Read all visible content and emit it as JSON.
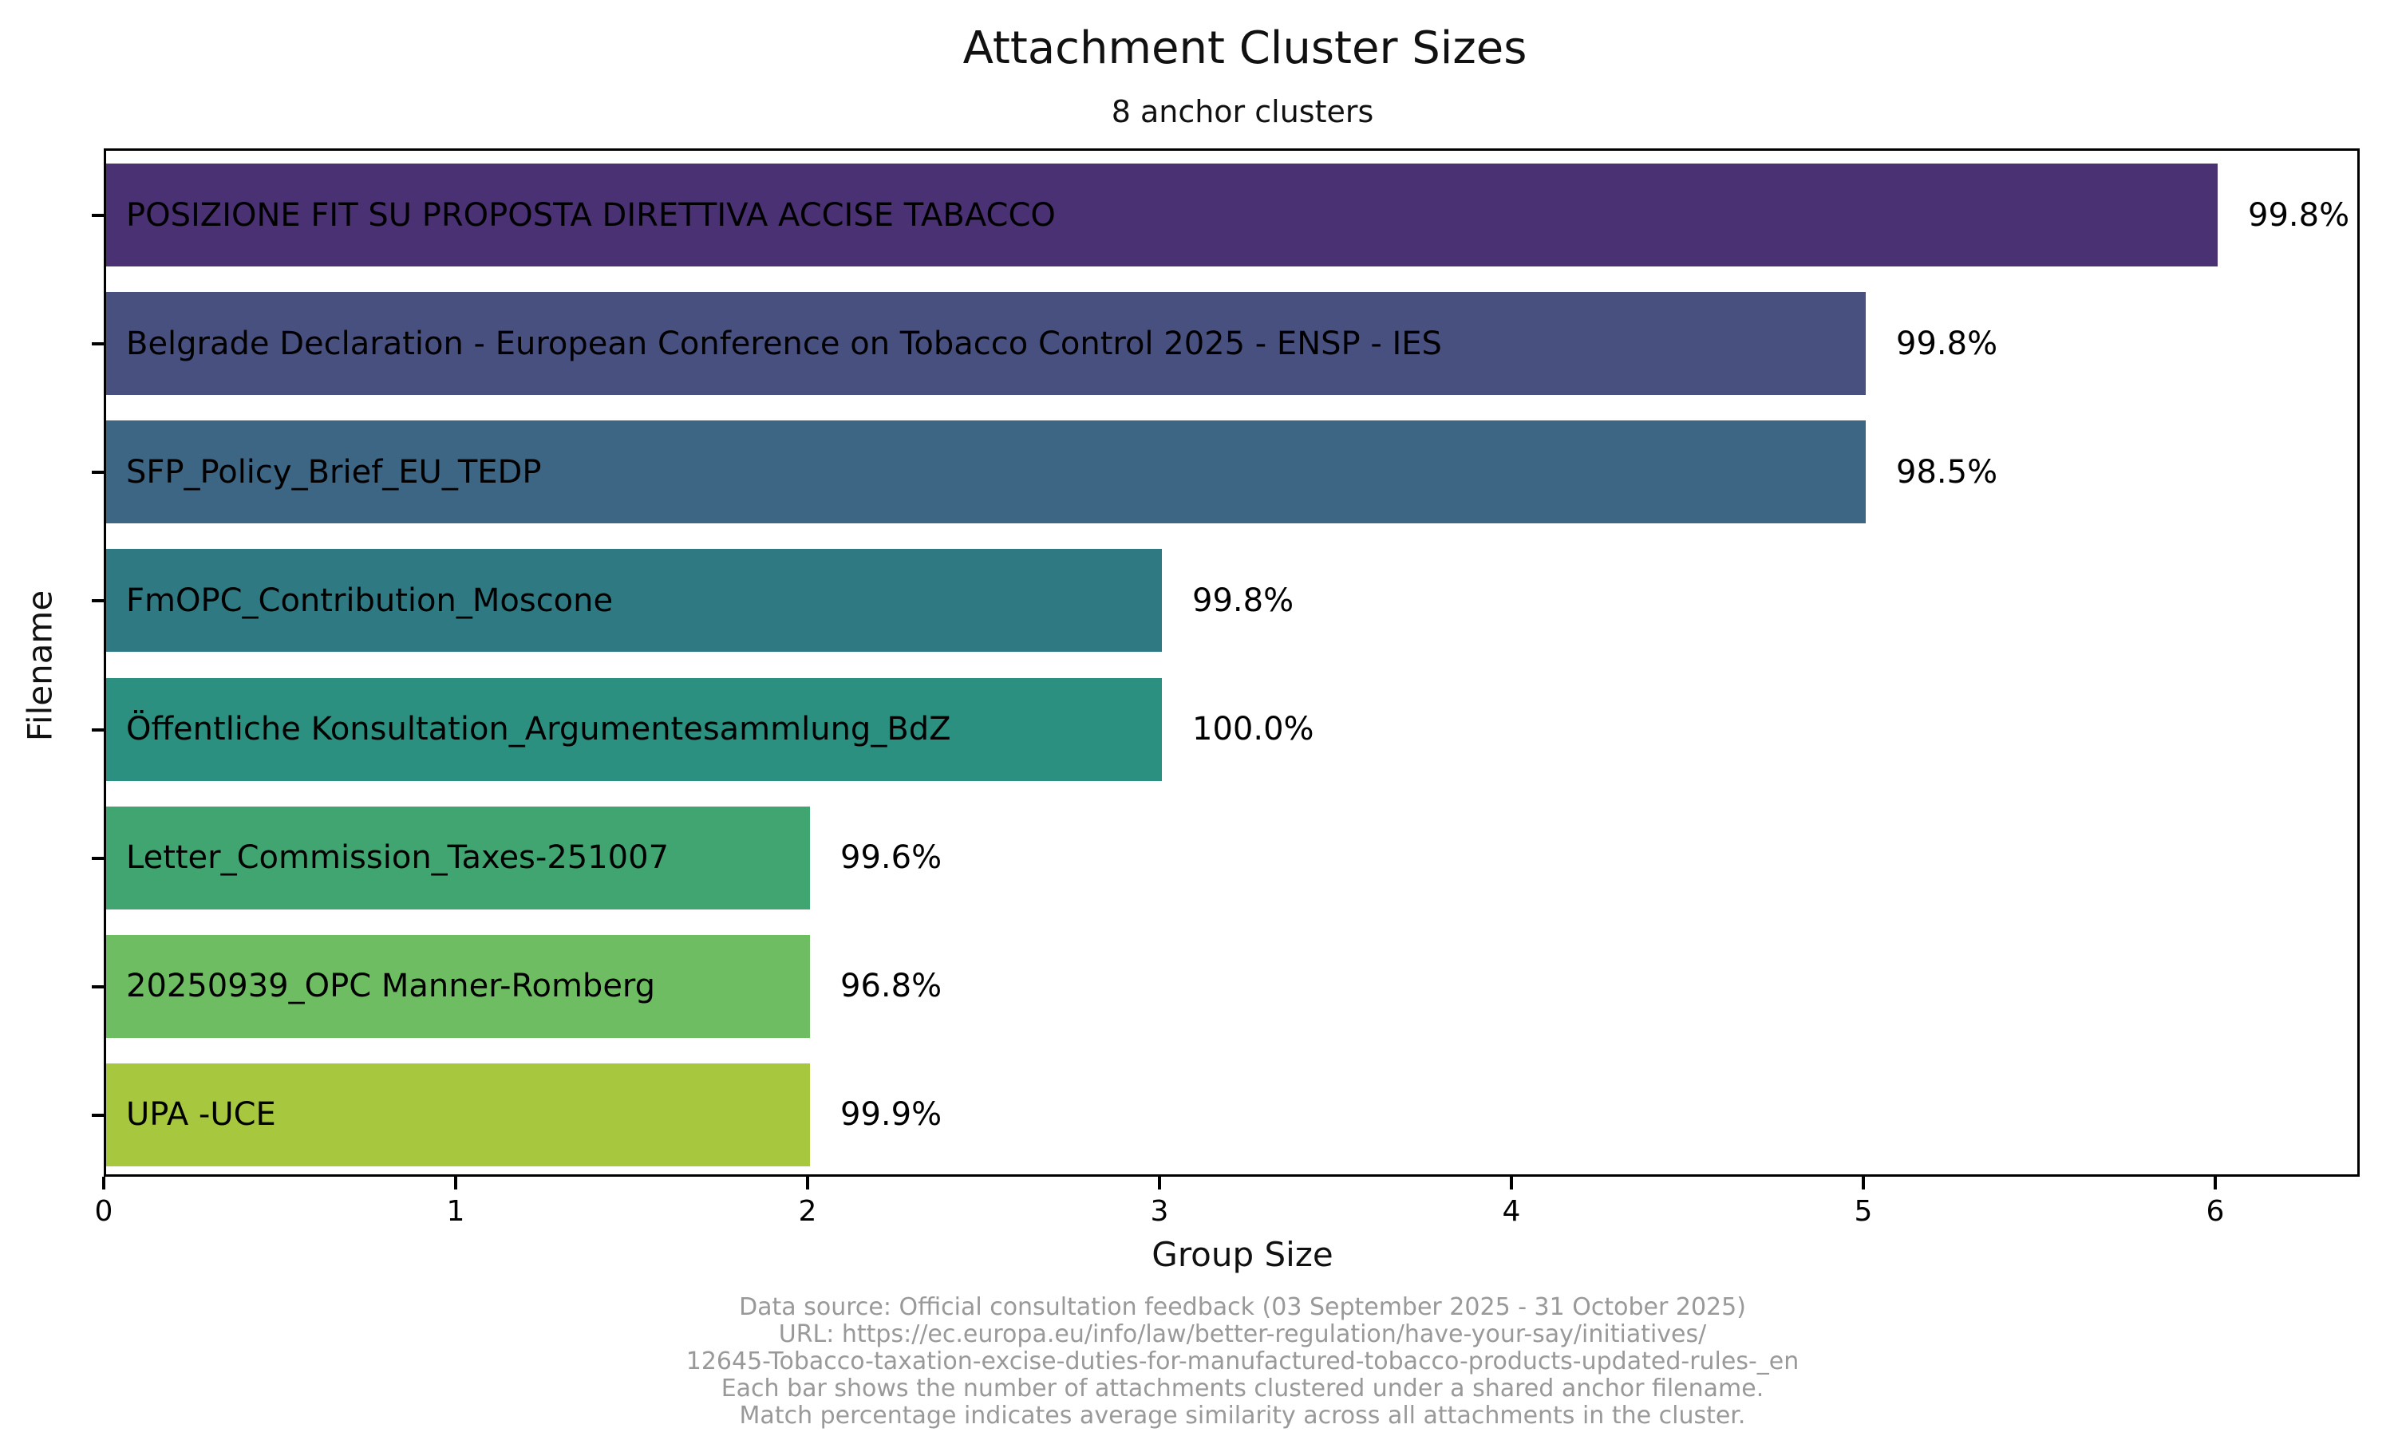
{
  "chart_data": {
    "type": "bar",
    "orientation": "horizontal",
    "title": "Attachment Cluster Sizes",
    "subtitle": "8 anchor clusters",
    "xlabel": "Group Size",
    "ylabel": "Filename",
    "xlim": [
      0,
      6.41
    ],
    "xticks": [
      0,
      1,
      2,
      3,
      4,
      5,
      6
    ],
    "grid": false,
    "legend": "none",
    "categories": [
      "POSIZIONE FIT SU PROPOSTA DIRETTIVA ACCISE TABACCO",
      "Belgrade Declaration - European Conference on Tobacco Control 2025 - ENSP - IES",
      "SFP_Policy_Brief_EU_TEDP",
      "FmOPC_Contribution_Moscone",
      "Öffentliche Konsultation_Argumentesammlung_BdZ",
      "Letter_Commission_Taxes-251007",
      "20250939_OPC Manner-Romberg",
      "UPA -UCE"
    ],
    "values": [
      6,
      5,
      5,
      3,
      3,
      2,
      2,
      2
    ],
    "bar_annotations": [
      "99.8%",
      "99.8%",
      "98.5%",
      "99.8%",
      "100.0%",
      "99.6%",
      "96.8%",
      "99.9%"
    ],
    "bar_colors": [
      "#4a3173",
      "#485080",
      "#3d6584",
      "#2f7a82",
      "#2b9080",
      "#41a572",
      "#6fbd63",
      "#a7c83e"
    ],
    "footer_lines": [
      "Data source: Official consultation feedback (03 September 2025 - 31 October 2025)",
      "URL: https://ec.europa.eu/info/law/better-regulation/have-your-say/initiatives/",
      "12645-Tobacco-taxation-excise-duties-for-manufactured-tobacco-products-updated-rules-_en",
      "Each bar shows the number of attachments clustered under a shared anchor filename.",
      "Match percentage indicates average similarity across all attachments in the cluster."
    ],
    "colors": {
      "text": "#000000",
      "footer_text": "#999999",
      "spine": "#000000",
      "background": "#ffffff"
    }
  }
}
